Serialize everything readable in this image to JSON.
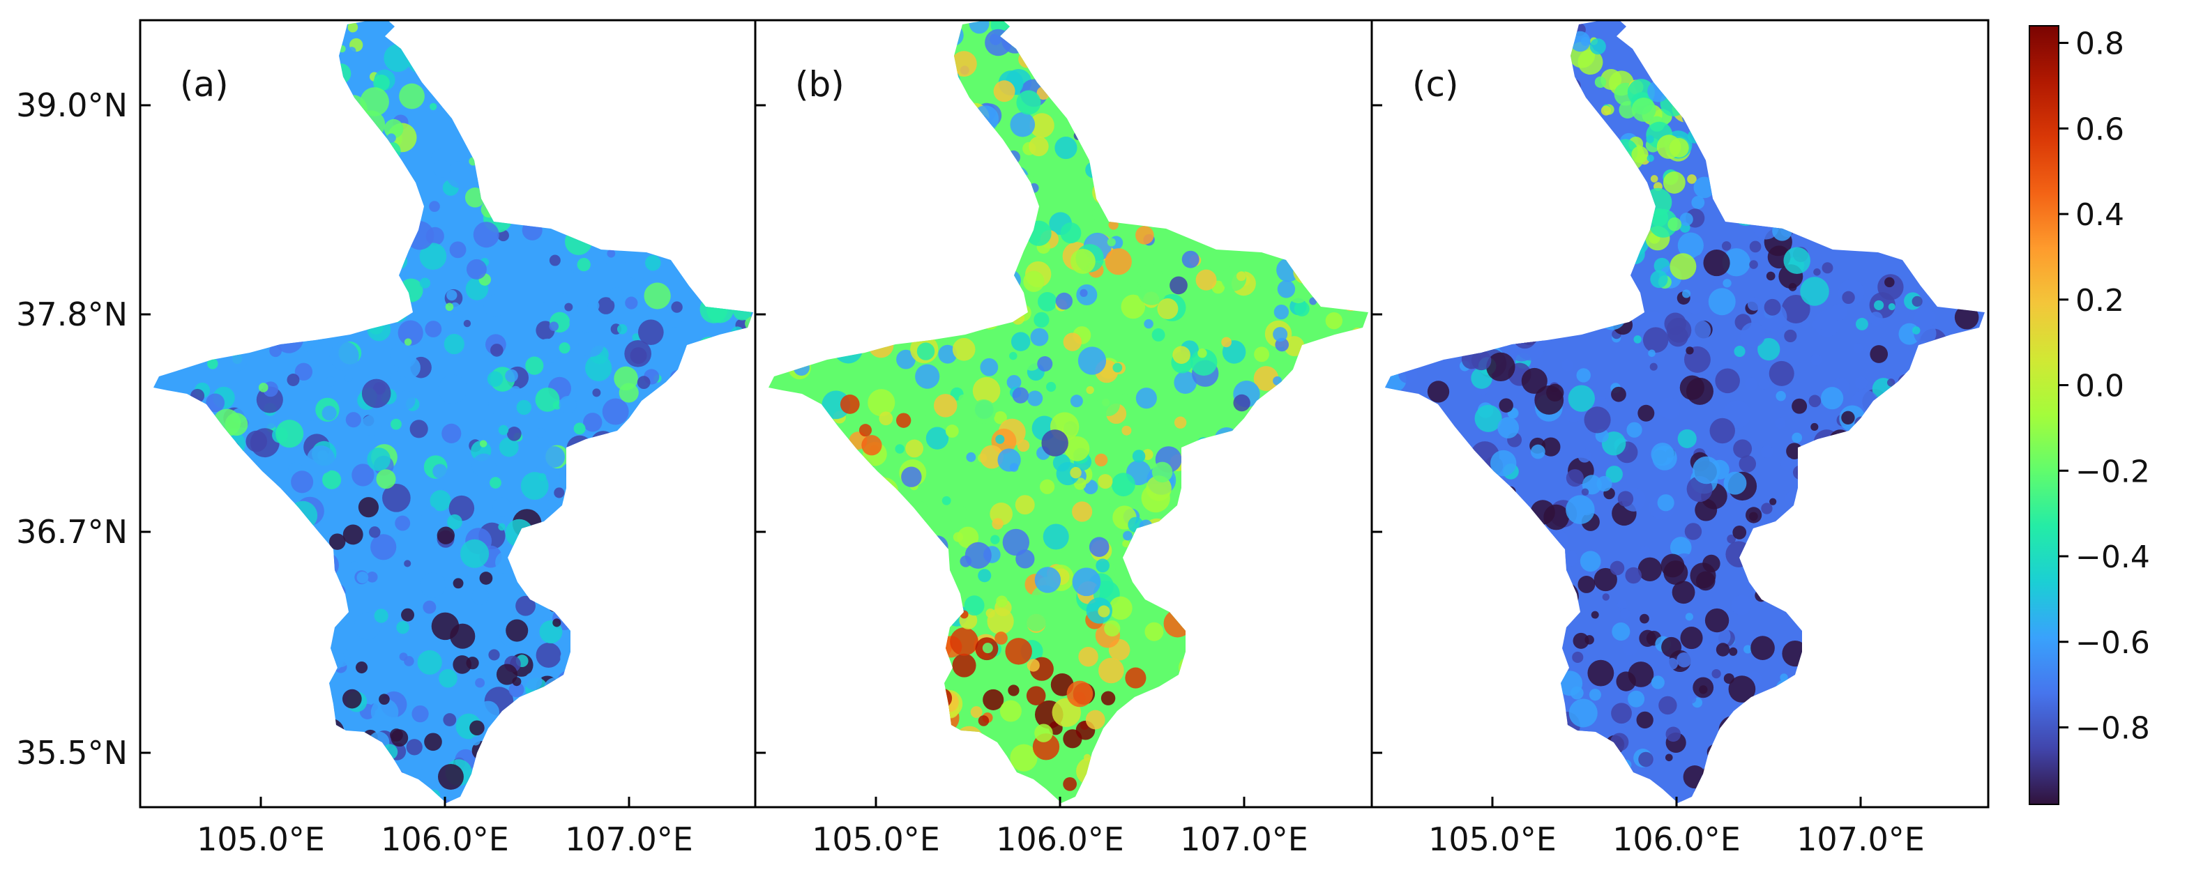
{
  "figure": {
    "panels": [
      {
        "id": "a",
        "label": "(a)"
      },
      {
        "id": "b",
        "label": "(b)"
      },
      {
        "id": "c",
        "label": "(c)"
      }
    ],
    "y_ticks": [
      {
        "value": 39.0,
        "label": "39.0°N"
      },
      {
        "value": 37.8,
        "label": "37.8°N"
      },
      {
        "value": 36.7,
        "label": "36.7°N"
      },
      {
        "value": 35.5,
        "label": "35.5°N"
      }
    ],
    "x_ticks": [
      {
        "value": 105.0,
        "label": "105.0°E"
      },
      {
        "value": 106.0,
        "label": "106.0°E"
      },
      {
        "value": 107.0,
        "label": "107.0°E"
      }
    ],
    "colorbar": {
      "min": -0.98,
      "max": 0.84,
      "ticks": [
        {
          "value": 0.8,
          "label": "0.8"
        },
        {
          "value": 0.6,
          "label": "0.6"
        },
        {
          "value": 0.4,
          "label": "0.4"
        },
        {
          "value": 0.2,
          "label": "0.2"
        },
        {
          "value": 0.0,
          "label": "0.0"
        },
        {
          "value": -0.2,
          "label": "−0.2"
        },
        {
          "value": -0.4,
          "label": "−0.4"
        },
        {
          "value": -0.6,
          "label": "−0.6"
        },
        {
          "value": -0.8,
          "label": "−0.8"
        }
      ],
      "colormap": [
        "#30123b",
        "#4145ab",
        "#4675ed",
        "#39a2fc",
        "#1bcfd4",
        "#24eca6",
        "#61fc6c",
        "#a4fc3b",
        "#d1e834",
        "#f3c63a",
        "#fe9b2d",
        "#f36315",
        "#d93806",
        "#b11901",
        "#7a0402"
      ]
    }
  }
}
